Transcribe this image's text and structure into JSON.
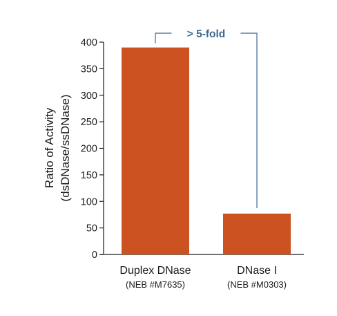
{
  "chart_data": {
    "type": "bar",
    "categories": [
      {
        "label": "Duplex DNase",
        "sublabel": "(NEB #M7635)"
      },
      {
        "label": "DNase I",
        "sublabel": "(NEB #M0303)"
      }
    ],
    "values": [
      390,
      77
    ],
    "ylabel_lines": [
      "Ratio of Activity",
      "(dsDNase/ssDNase)"
    ],
    "ylim": [
      0,
      400
    ],
    "yticks": [
      0,
      50,
      100,
      150,
      200,
      250,
      300,
      350,
      400
    ],
    "grid": false,
    "bar_color": "#cc5222",
    "annotation": {
      "label": "> 5-fold",
      "color": "#3e6a8f"
    }
  }
}
